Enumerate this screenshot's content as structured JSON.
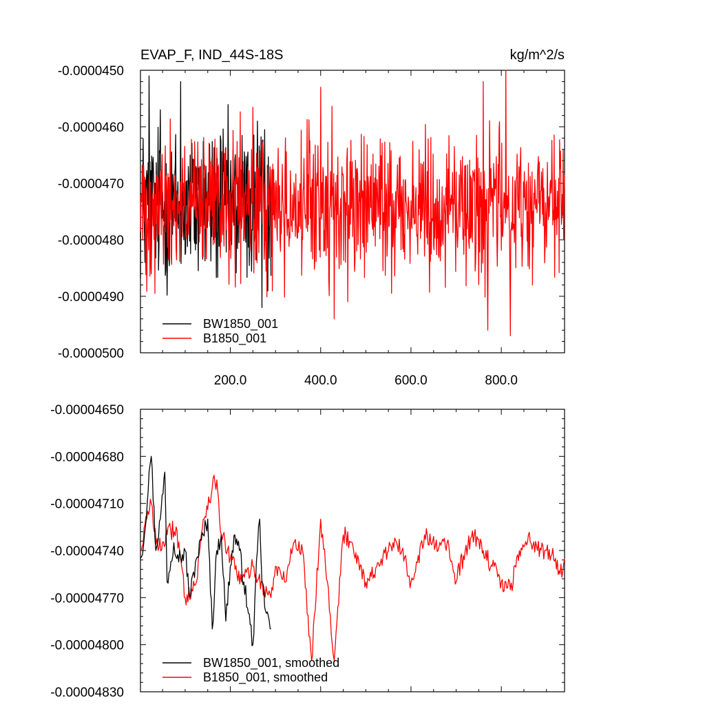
{
  "chart_data": [
    {
      "type": "line",
      "title": "EVAP_F, IND_44S-18S",
      "units": "kg/m^2/s",
      "xlim": [
        1,
        940
      ],
      "ylim": [
        -5e-05,
        -4.5e-05
      ],
      "xticks": [
        200,
        400,
        600,
        800
      ],
      "xtick_labels": [
        "200.0",
        "400.0",
        "600.0",
        "800.0"
      ],
      "yticks": [
        -4.5e-05,
        -4.6e-05,
        -4.7e-05,
        -4.8e-05,
        -4.9e-05,
        -5e-05
      ],
      "ytick_labels": [
        "-0.0000450",
        "-0.0000460",
        "-0.0000470",
        "-0.0000480",
        "-0.0000490",
        "-0.0000500"
      ],
      "grid": false,
      "legend_position": "bottom-left",
      "series": [
        {
          "name": "BW1850_001",
          "color": "#000000",
          "x_start": 1,
          "x_step": 1,
          "n": 290,
          "mean": -4.74e-05,
          "spread": 1.1e-06,
          "peaks": [
            [
              20,
              -4.51e-05
            ],
            [
              45,
              -4.57e-05
            ],
            [
              90,
              -4.52e-05
            ],
            [
              260,
              -4.59e-05
            ],
            [
              270,
              -4.92e-05
            ]
          ]
        },
        {
          "name": "B1850_001",
          "color": "#ff0000",
          "x_start": 1,
          "x_step": 1,
          "n": 940,
          "mean": -4.74e-05,
          "spread": 1e-06,
          "peaks": [
            [
              400,
              -4.53e-05
            ],
            [
              760,
              -4.52e-05
            ],
            [
              810,
              -4.5e-05
            ],
            [
              430,
              -4.94e-05
            ],
            [
              820,
              -4.97e-05
            ],
            [
              770,
              -4.96e-05
            ]
          ]
        }
      ]
    },
    {
      "type": "line",
      "title": "",
      "xlim": [
        1,
        940
      ],
      "ylim": [
        -4.83e-05,
        -4.65e-05
      ],
      "xticks": [
        200,
        400,
        600,
        800
      ],
      "xtick_labels": [],
      "yticks": [
        -4.65e-05,
        -4.68e-05,
        -4.71e-05,
        -4.74e-05,
        -4.77e-05,
        -4.8e-05,
        -4.83e-05
      ],
      "ytick_labels": [
        "-0.00004650",
        "-0.00004680",
        "-0.00004710",
        "-0.00004740",
        "-0.00004770",
        "-0.00004800",
        "-0.00004830"
      ],
      "grid": false,
      "legend_position": "bottom-left",
      "series": [
        {
          "name": "BW1850_001, smoothed",
          "color": "#000000",
          "x": [
            1,
            10,
            20,
            25,
            35,
            45,
            55,
            60,
            75,
            90,
            100,
            110,
            125,
            140,
            150,
            160,
            170,
            180,
            190,
            200,
            210,
            220,
            230,
            240,
            250,
            260,
            265,
            270,
            280,
            290
          ],
          "y": [
            -4.745e-05,
            -4.73e-05,
            -4.69e-05,
            -4.68e-05,
            -4.74e-05,
            -4.72e-05,
            -4.69e-05,
            -4.76e-05,
            -4.735e-05,
            -4.745e-05,
            -4.74e-05,
            -4.77e-05,
            -4.745e-05,
            -4.73e-05,
            -4.72e-05,
            -4.79e-05,
            -4.74e-05,
            -4.73e-05,
            -4.785e-05,
            -4.75e-05,
            -4.73e-05,
            -4.74e-05,
            -4.76e-05,
            -4.78e-05,
            -4.8e-05,
            -4.74e-05,
            -4.72e-05,
            -4.76e-05,
            -4.78e-05,
            -4.79e-05
          ]
        },
        {
          "name": "B1850_001, smoothed",
          "color": "#ff0000",
          "x": [
            1,
            15,
            25,
            40,
            60,
            80,
            100,
            125,
            140,
            160,
            170,
            180,
            200,
            225,
            250,
            275,
            290,
            300,
            320,
            340,
            360,
            380,
            400,
            415,
            430,
            450,
            470,
            500,
            530,
            560,
            580,
            600,
            630,
            660,
            680,
            700,
            720,
            740,
            760,
            780,
            800,
            820,
            840,
            860,
            880,
            900,
            920,
            930,
            940
          ],
          "y": [
            -4.74e-05,
            -4.72e-05,
            -4.71e-05,
            -4.74e-05,
            -4.73e-05,
            -4.725e-05,
            -4.77e-05,
            -4.76e-05,
            -4.72e-05,
            -4.7e-05,
            -4.695e-05,
            -4.73e-05,
            -4.745e-05,
            -4.76e-05,
            -4.75e-05,
            -4.765e-05,
            -4.77e-05,
            -4.75e-05,
            -4.76e-05,
            -4.735e-05,
            -4.74e-05,
            -4.81e-05,
            -4.72e-05,
            -4.76e-05,
            -4.81e-05,
            -4.73e-05,
            -4.735e-05,
            -4.76e-05,
            -4.75e-05,
            -4.735e-05,
            -4.74e-05,
            -4.76e-05,
            -4.73e-05,
            -4.74e-05,
            -4.735e-05,
            -4.76e-05,
            -4.74e-05,
            -4.73e-05,
            -4.74e-05,
            -4.75e-05,
            -4.76e-05,
            -4.765e-05,
            -4.74e-05,
            -4.73e-05,
            -4.74e-05,
            -4.74e-05,
            -4.745e-05,
            -4.755e-05,
            -4.745e-05
          ]
        }
      ]
    }
  ]
}
